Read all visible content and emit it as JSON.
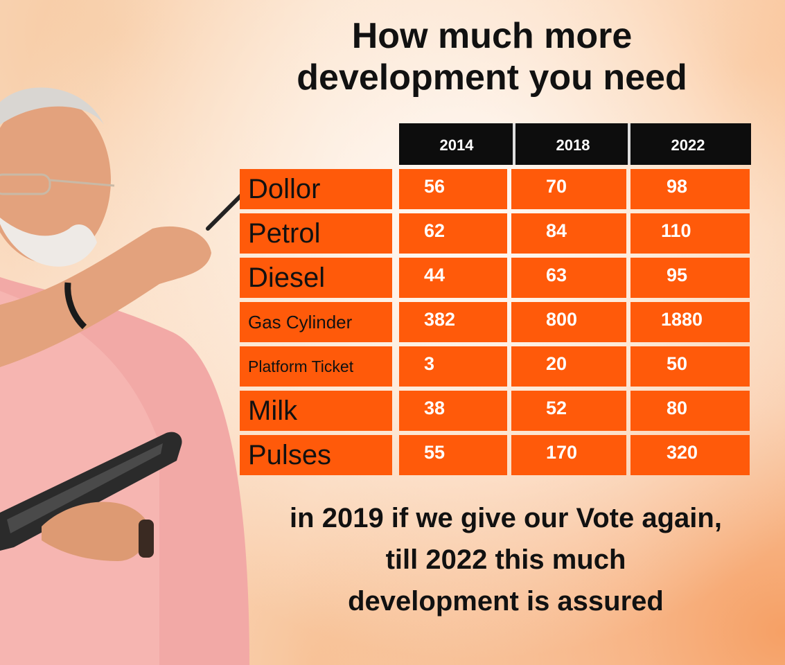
{
  "title": {
    "line1": "How much more",
    "line2": "development you need"
  },
  "table": {
    "years": [
      "2014",
      "2018",
      "2022"
    ],
    "rows": [
      {
        "label": "Dollor",
        "values": [
          "56",
          "70",
          "98"
        ]
      },
      {
        "label": "Petrol",
        "values": [
          "62",
          "84",
          "110"
        ]
      },
      {
        "label": "Diesel",
        "values": [
          "44",
          "63",
          "95"
        ]
      },
      {
        "label": "Gas Cylinder",
        "values": [
          "382",
          "800",
          "1880"
        ]
      },
      {
        "label": "Platform Ticket",
        "values": [
          "3",
          "20",
          "50"
        ]
      },
      {
        "label": "Milk",
        "values": [
          "38",
          "52",
          "80"
        ]
      },
      {
        "label": "Pulses",
        "values": [
          "55",
          "170",
          "320"
        ]
      }
    ]
  },
  "footer": {
    "line1": "in 2019 if we give our Vote again,",
    "line2": "till 2022 this much",
    "line3": "development is assured"
  },
  "colors": {
    "header_bg": "#0d0d0d",
    "cell_bg": "#ff5a0a",
    "value_text": "#ffffff",
    "label_text": "#111111"
  }
}
